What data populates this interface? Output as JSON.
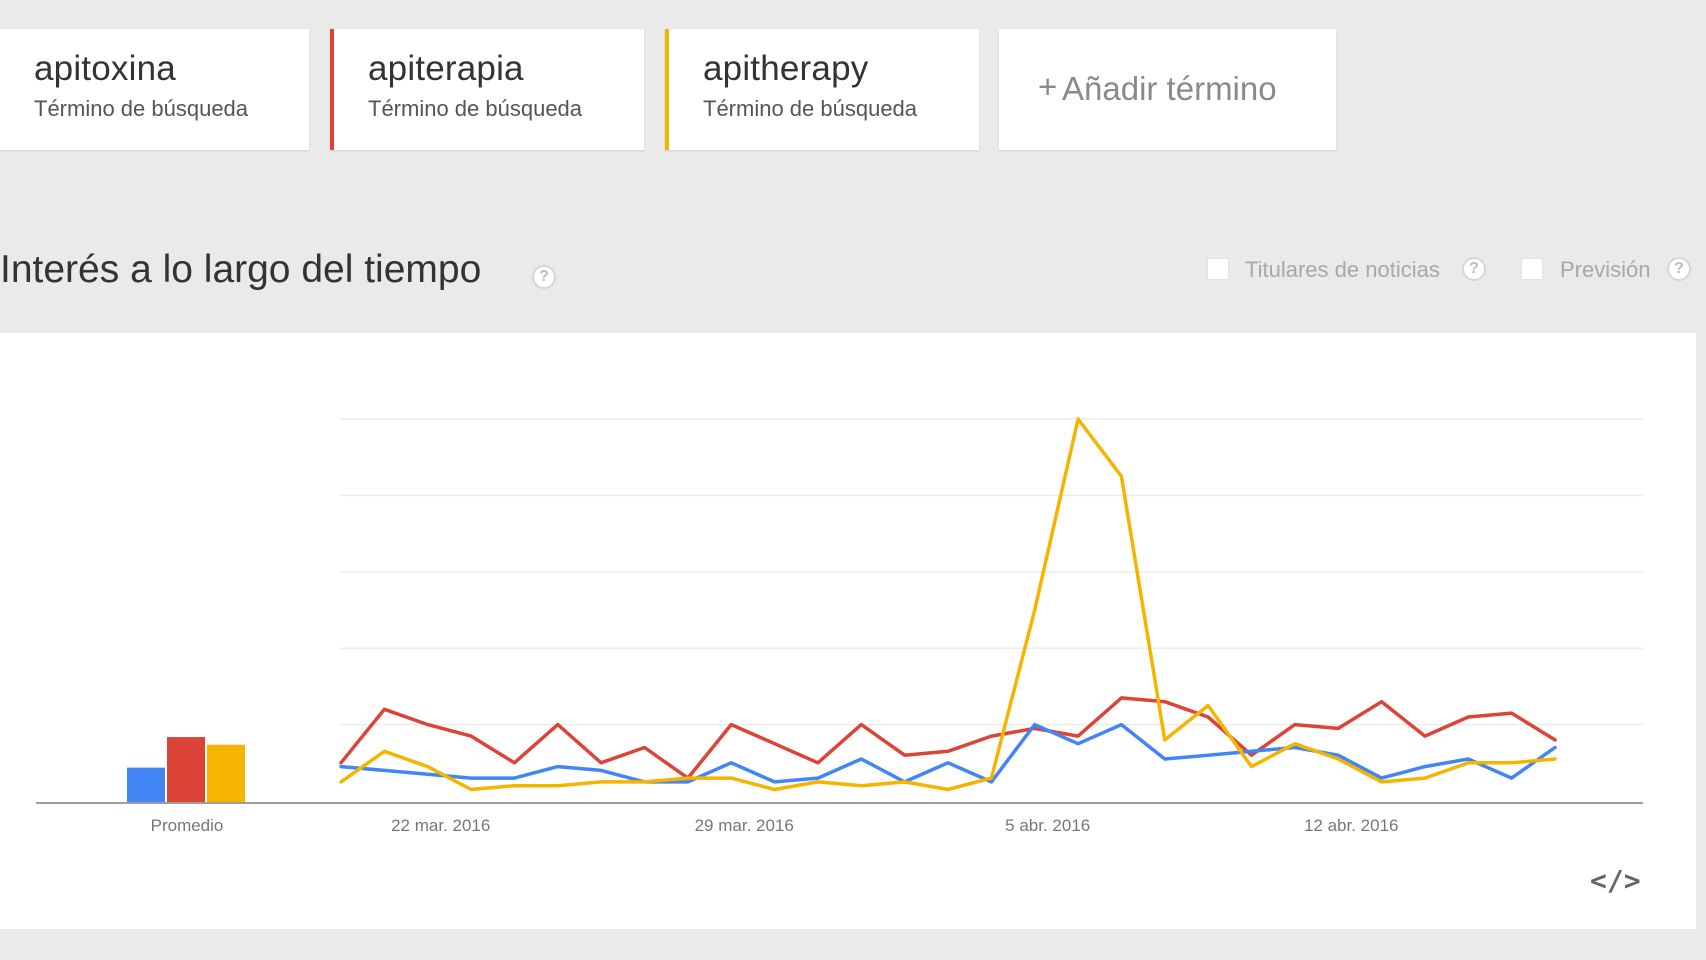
{
  "terms": [
    {
      "name": "apitoxina",
      "type": "Término de búsqueda",
      "color": "#4285f4"
    },
    {
      "name": "apiterapia",
      "type": "Término de búsqueda",
      "color": "#db4437"
    },
    {
      "name": "apitherapy",
      "type": "Término de búsqueda",
      "color": "#f4b400"
    }
  ],
  "add_term": {
    "plus": "+",
    "label": "Añadir término"
  },
  "section": {
    "title": "Interés a lo largo del tiempo",
    "help": "?"
  },
  "options": {
    "news_label": "Titulares de noticias",
    "forecast_label": "Previsión",
    "help": "?"
  },
  "embed_icon": "</>",
  "chart_data": {
    "type": "line",
    "title": "",
    "xlabel": "",
    "ylabel": "",
    "ylim": [
      0,
      100
    ],
    "grid": true,
    "x_tick_labels": [
      "22 mar. 2016",
      "29 mar. 2016",
      "5 abr. 2016",
      "12 abr. 2016"
    ],
    "x_tick_index": [
      2.3,
      9.3,
      16.3,
      23.3
    ],
    "average": {
      "label": "Promedio",
      "values": [
        9,
        17,
        15
      ]
    },
    "series": [
      {
        "name": "apitoxina",
        "color": "#4285f4",
        "values": [
          9,
          8,
          7,
          6,
          6,
          9,
          8,
          5,
          5,
          10,
          5,
          6,
          11,
          5,
          10,
          5,
          20,
          15,
          20,
          11,
          12,
          13,
          14,
          12,
          6,
          9,
          11,
          6,
          14
        ]
      },
      {
        "name": "apiterapia",
        "color": "#db4437",
        "values": [
          10,
          24,
          20,
          17,
          10,
          20,
          10,
          14,
          6,
          20,
          15,
          10,
          20,
          12,
          13,
          17,
          19,
          17,
          27,
          26,
          22,
          12,
          20,
          19,
          26,
          17,
          22,
          23,
          16
        ]
      },
      {
        "name": "apitherapy",
        "color": "#f4b400",
        "values": [
          5,
          13,
          9,
          3,
          4,
          4,
          5,
          5,
          6,
          6,
          3,
          5,
          4,
          5,
          3,
          6,
          50,
          100,
          85,
          16,
          25,
          9,
          15,
          11,
          5,
          6,
          10,
          10,
          11
        ]
      }
    ]
  }
}
